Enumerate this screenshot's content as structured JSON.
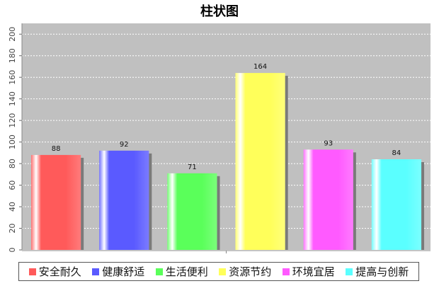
{
  "chart_data": {
    "type": "bar",
    "title": "柱状图",
    "xlabel": "",
    "ylabel": "",
    "categories": [
      "安全耐久",
      "健康舒适",
      "生活便利",
      "资源节约",
      "环境宜居",
      "提高与创新"
    ],
    "values": [
      88,
      92,
      71,
      164,
      93,
      84
    ],
    "colors": [
      "#ff5a5a",
      "#5a5aff",
      "#5aff5a",
      "#ffff5a",
      "#ff5aff",
      "#5affff"
    ],
    "ylim": [
      0,
      210
    ],
    "yticks": [
      0,
      20,
      40,
      60,
      80,
      100,
      120,
      140,
      160,
      180,
      200
    ],
    "grid": true,
    "legend_position": "bottom",
    "plot_background": "#c0c0c0",
    "gridline_color": "#ffffff"
  }
}
